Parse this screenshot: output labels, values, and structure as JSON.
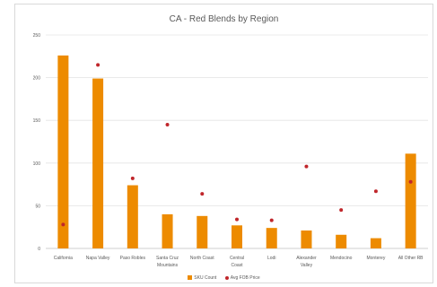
{
  "chart_data": {
    "type": "bar",
    "title": "CA - Red Blends by Region",
    "categories": [
      "California",
      "Napa Valley",
      "Paso Robles",
      "Santa Cruz Mountains",
      "North Coast",
      "Central Coast",
      "Lodi",
      "Alexander Valley",
      "Mendocino",
      "Monterey",
      "All Other RB"
    ],
    "category_lines": [
      [
        "California"
      ],
      [
        "Napa Valley"
      ],
      [
        "Paso Robles"
      ],
      [
        "Santa Cruz",
        "Mountains"
      ],
      [
        "North Coast"
      ],
      [
        "Central",
        "Coast"
      ],
      [
        "Lodi"
      ],
      [
        "Alexander",
        "Valley"
      ],
      [
        "Mendocino"
      ],
      [
        "Monterey"
      ],
      [
        "All Other RB"
      ]
    ],
    "series": [
      {
        "name": "SKU Count",
        "type": "bar",
        "color": "#ed8b00",
        "values": [
          226,
          199,
          74,
          40,
          38,
          27,
          24,
          21,
          16,
          12,
          111
        ]
      },
      {
        "name": "Avg FOB Price",
        "type": "scatter",
        "color": "#c0262b",
        "values": [
          28,
          215,
          82,
          145,
          64,
          34,
          33,
          96,
          45,
          67,
          78
        ]
      }
    ],
    "ylim": [
      0,
      250
    ],
    "yticks": [
      "0",
      "50",
      "100",
      "150",
      "200",
      "250"
    ],
    "grid": true,
    "legend_position": "bottom"
  }
}
